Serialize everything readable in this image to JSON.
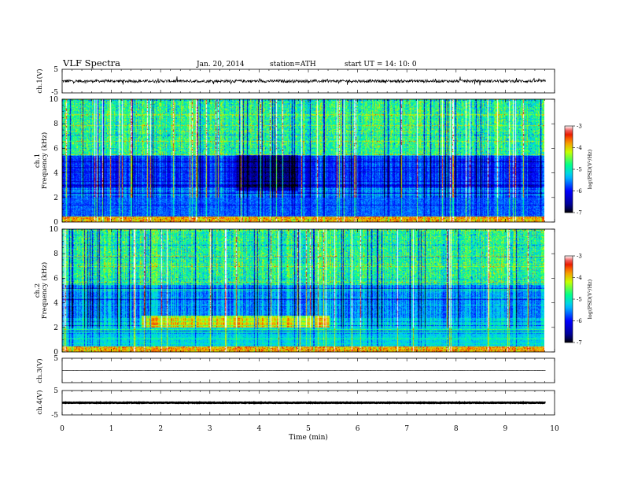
{
  "header": {
    "title": "VLF Spectra",
    "date": "Jan. 20, 2014",
    "station": "station=ATH",
    "start": "start  UT =   14: 10: 0"
  },
  "chart_data": [
    {
      "type": "line",
      "ylabel": "ch.1(V)",
      "ylim": [
        -5,
        5
      ],
      "yticks": [
        "5",
        "-5"
      ],
      "baseline": 0,
      "amplitude": 0.6
    },
    {
      "type": "heatmap",
      "ylabel_channel": "ch.1",
      "ylabel": "Frequency (kHz)",
      "ylim": [
        0,
        10
      ],
      "yticks": [
        "10",
        "8",
        "6",
        "4",
        "2",
        "0"
      ],
      "xlim": [
        0,
        10
      ],
      "colorbar": {
        "label": "log(PSD(V²/Hz)",
        "ticks": [
          "-3",
          "-4",
          "-5",
          "-6",
          "-7"
        ],
        "range": [
          -7,
          -3
        ]
      }
    },
    {
      "type": "heatmap",
      "ylabel_channel": "ch.2",
      "ylabel": "Frequency (kHz)",
      "ylim": [
        0,
        10
      ],
      "yticks": [
        "10",
        "8",
        "6",
        "4",
        "2",
        "0"
      ],
      "xlim": [
        0,
        10
      ],
      "colorbar": {
        "label": "log(PSD(V²/Hz)",
        "ticks": [
          "-3",
          "-4",
          "-5",
          "-6",
          "-7"
        ],
        "range": [
          -7,
          -3
        ]
      }
    },
    {
      "type": "line",
      "ylabel": "ch.3(V)",
      "ylim": [
        -5,
        5
      ],
      "yticks": [
        "5"
      ],
      "baseline": 0,
      "amplitude": 0.05
    },
    {
      "type": "line",
      "ylabel": "ch.4(V)",
      "ylim": [
        -5,
        5
      ],
      "yticks": [
        "5",
        "-5"
      ],
      "baseline": 0,
      "amplitude": 0.1
    }
  ],
  "xaxis": {
    "label": "Time (min)",
    "ticks": [
      "0",
      "1",
      "2",
      "3",
      "4",
      "5",
      "6",
      "7",
      "8",
      "9",
      "10"
    ],
    "xlim": [
      0,
      10
    ],
    "data_end": 9.82
  }
}
